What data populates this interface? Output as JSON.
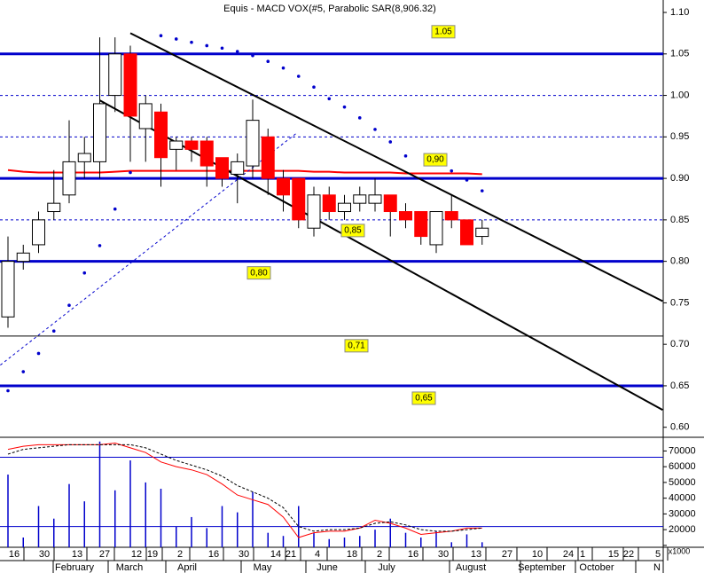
{
  "chart_data": {
    "type": "candlestick",
    "title": "Equis - MACD VOX(#5, Parabolic SAR(8,906.32)",
    "open": [
      0.733,
      0.8,
      0.82,
      0.86,
      0.88,
      0.92,
      0.92,
      1.0,
      1.05,
      0.96,
      0.98,
      0.935,
      0.945,
      0.945,
      0.925,
      0.905,
      0.915,
      0.95,
      0.9,
      0.9,
      0.84,
      0.88,
      0.86,
      0.87,
      0.87,
      0.88,
      0.86,
      0.86,
      0.82,
      0.86,
      0.85,
      0.83
    ],
    "high": [
      0.83,
      0.82,
      0.86,
      0.91,
      0.97,
      0.95,
      1.07,
      1.07,
      1.06,
      1.0,
      0.99,
      0.95,
      0.95,
      0.95,
      0.925,
      0.93,
      0.995,
      0.96,
      0.91,
      0.9,
      0.89,
      0.89,
      0.88,
      0.89,
      0.9,
      0.88,
      0.87,
      0.86,
      0.86,
      0.88,
      0.85,
      0.85
    ],
    "low": [
      0.72,
      0.79,
      0.81,
      0.85,
      0.87,
      0.9,
      0.9,
      0.98,
      0.92,
      0.92,
      0.89,
      0.91,
      0.92,
      0.89,
      0.89,
      0.87,
      0.9,
      0.88,
      0.86,
      0.84,
      0.83,
      0.85,
      0.85,
      0.86,
      0.86,
      0.83,
      0.84,
      0.82,
      0.81,
      0.84,
      0.82,
      0.82
    ],
    "close": [
      0.8,
      0.81,
      0.85,
      0.87,
      0.92,
      0.93,
      0.99,
      1.05,
      0.975,
      0.99,
      0.925,
      0.945,
      0.935,
      0.915,
      0.9,
      0.92,
      0.97,
      0.9,
      0.88,
      0.85,
      0.88,
      0.86,
      0.87,
      0.88,
      0.88,
      0.86,
      0.85,
      0.83,
      0.86,
      0.85,
      0.82,
      0.84
    ],
    "up_color": "#ffffff",
    "down_color": "#ff0000",
    "sar": {
      "color": "#0000cc",
      "values": [
        0.644,
        0.667,
        0.689,
        0.716,
        0.747,
        0.786,
        0.819,
        0.863,
        0.907,
        null,
        1.072,
        1.068,
        1.064,
        1.06,
        1.057,
        1.053,
        1.048,
        1.041,
        1.033,
        1.023,
        1.01,
        0.996,
        0.986,
        0.973,
        0.959,
        0.944,
        0.927,
        null,
        null,
        0.909,
        0.898,
        0.885
      ]
    },
    "moving_average": {
      "color": "#ff0000",
      "values": [
        0.91,
        0.908,
        0.907,
        0.907,
        0.907,
        0.907,
        0.907,
        0.908,
        0.909,
        0.909,
        0.909,
        0.909,
        0.909,
        0.909,
        0.909,
        0.909,
        0.909,
        0.909,
        0.909,
        0.909,
        0.908,
        0.908,
        0.907,
        0.907,
        0.907,
        0.907,
        0.906,
        0.906,
        0.906,
        0.906,
        0.906,
        0.905
      ]
    },
    "trendlines": [
      {
        "color": "#000000",
        "x": [
          8,
          42.8
        ],
        "values": [
          1.075,
          0.752
        ]
      },
      {
        "color": "#000000",
        "x": [
          6,
          42.8
        ],
        "values": [
          0.994,
          0.621
        ]
      },
      {
        "color": "#0000cc",
        "x": [
          -0.5,
          18.9
        ],
        "values": [
          0.675,
          0.955
        ]
      }
    ],
    "levels": [
      {
        "value": 1.05,
        "label": "1.05",
        "style": "thick"
      },
      {
        "value": 1.0,
        "style": "dashed"
      },
      {
        "value": 0.95,
        "style": "dashed"
      },
      {
        "value": 0.9,
        "label": "0,90",
        "style": "thick"
      },
      {
        "value": 0.85,
        "label": "0,85",
        "style": "dashed"
      },
      {
        "value": 0.8,
        "label": "0,80",
        "style": "thick"
      },
      {
        "value": 0.71,
        "label": "0,71",
        "style": "thin"
      },
      {
        "value": 0.65,
        "label": "0,65",
        "style": "thick"
      }
    ],
    "ylim": [
      0.589,
      1.115
    ],
    "yticks": [
      {
        "value": 1.1,
        "label": "1.10"
      },
      {
        "value": 1.05,
        "label": "1.05"
      },
      {
        "value": 1.0,
        "label": "1.00"
      },
      {
        "value": 0.95,
        "label": "0.95"
      },
      {
        "value": 0.9,
        "label": "0.90"
      },
      {
        "value": 0.85,
        "label": "0.85"
      },
      {
        "value": 0.8,
        "label": "0.80"
      },
      {
        "value": 0.75,
        "label": "0.75"
      },
      {
        "value": 0.7,
        "label": "0.70"
      },
      {
        "value": 0.65,
        "label": "0.65"
      },
      {
        "value": 0.6,
        "label": "0.60"
      }
    ],
    "volume": {
      "color": "#0000cc",
      "values": [
        55000,
        15000,
        35000,
        27000,
        49000,
        38000,
        76000,
        45000,
        64000,
        50000,
        46000,
        22000,
        28000,
        21000,
        35000,
        31000,
        44000,
        18000,
        16000,
        35000,
        18000,
        14000,
        15000,
        16000,
        20000,
        27000,
        18000,
        15000,
        19000,
        12000,
        17000,
        12000
      ]
    },
    "oscillator": [
      {
        "color": "#ff0000",
        "style": "solid",
        "values": [
          71000,
          73000,
          74000,
          74000,
          74000,
          74000,
          74000,
          75000,
          72000,
          69000,
          63000,
          60000,
          58000,
          55000,
          49000,
          42000,
          39000,
          36000,
          28000,
          15000,
          18000,
          19000,
          19000,
          21000,
          26000,
          24000,
          21000,
          17000,
          18000,
          19000,
          21000,
          21000
        ]
      },
      {
        "color": "#000000",
        "style": "dashed",
        "values": [
          68000,
          71000,
          72000,
          73000,
          74000,
          74000,
          74000,
          74000,
          74000,
          72000,
          68000,
          64000,
          61000,
          58000,
          54000,
          48000,
          44000,
          40000,
          34000,
          22000,
          19000,
          20000,
          20000,
          21000,
          24000,
          25000,
          23000,
          20000,
          19000,
          19000,
          20000,
          21000
        ]
      }
    ],
    "volume_levels": [
      66000,
      22000
    ],
    "y2lim": [
      8800,
      77000
    ],
    "y2ticks": [
      10000,
      20000,
      30000,
      40000,
      50000,
      60000,
      70000
    ],
    "y2_unit_label": "x1000",
    "x_day_labels": [
      "16",
      "30",
      "13",
      "27",
      "12",
      "19",
      "2",
      "16",
      "30",
      "14",
      "21",
      "4",
      "18",
      "2",
      "16",
      "30",
      "13",
      "27",
      "10",
      "24",
      "1",
      "15",
      "22",
      "5"
    ],
    "x_month_labels": [
      "February",
      "March",
      "April",
      "May",
      "June",
      "July",
      "August",
      "September",
      "October",
      "N"
    ]
  }
}
